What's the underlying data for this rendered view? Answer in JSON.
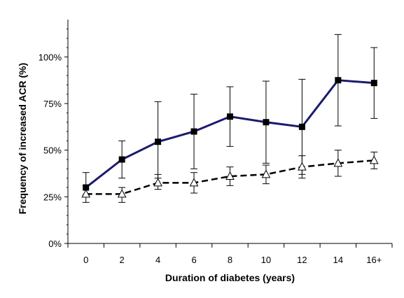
{
  "chart_data": {
    "type": "line",
    "xlabel": "Duration of diabetes (years)",
    "ylabel": "Frequency of increased ACR (%)",
    "categories": [
      "0",
      "2",
      "4",
      "6",
      "8",
      "10",
      "12",
      "14",
      "16+"
    ],
    "y_ticks": [
      "0%",
      "25%",
      "50%",
      "75%",
      "100%"
    ],
    "ylim": [
      0,
      120
    ],
    "grid": false,
    "series": [
      {
        "color": "#1a1a6e",
        "marker": "square",
        "line_style": "solid",
        "values": [
          30,
          45,
          54.5,
          60,
          68,
          65,
          62.5,
          87.5,
          86
        ],
        "err_low": [
          26,
          35,
          35,
          40,
          52,
          43,
          37,
          63,
          67
        ],
        "err_high": [
          38,
          55,
          76,
          80,
          84,
          87,
          88,
          112,
          105
        ]
      },
      {
        "color": "#000000",
        "marker": "triangle-open",
        "line_style": "dashed",
        "values": [
          26.5,
          26.5,
          32.5,
          32.5,
          36,
          37,
          41,
          43,
          44.5
        ],
        "err_low": [
          22,
          22,
          29,
          27,
          31,
          32,
          35,
          36,
          40
        ],
        "err_high": [
          31,
          30,
          37,
          38,
          41,
          42,
          47,
          50,
          49
        ]
      }
    ]
  }
}
